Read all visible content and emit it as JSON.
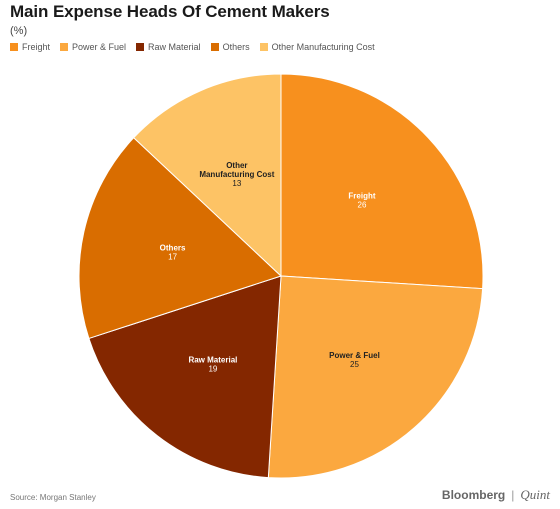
{
  "header": {
    "title": "Main Expense Heads Of Cement Makers",
    "subtitle": "(%)"
  },
  "chart_data": {
    "type": "pie",
    "categories": [
      "Freight",
      "Power & Fuel",
      "Raw Material",
      "Others",
      "Other Manufacturing Cost"
    ],
    "values": [
      26,
      25,
      19,
      17,
      13
    ],
    "colors": [
      "#f7901e",
      "#fba83f",
      "#842700",
      "#d96d00",
      "#fdc365"
    ],
    "label_colors": [
      "#ffffff",
      "#222222",
      "#ffffff",
      "#ffffff",
      "#222222"
    ],
    "legend_placement": "top-left",
    "title": "Main Expense Heads Of Cement Makers",
    "subtitle": "(%)"
  },
  "footer": {
    "source": "Source: Morgan Stanley",
    "brand_primary": "Bloomberg",
    "brand_separator": "|",
    "brand_secondary": "Quint"
  }
}
